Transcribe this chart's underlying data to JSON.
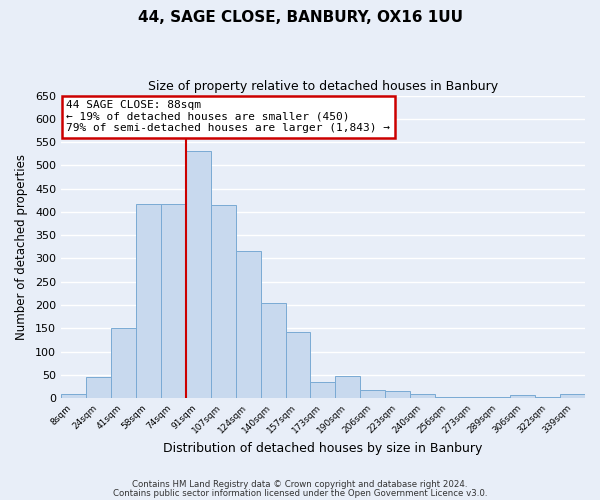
{
  "title": "44, SAGE CLOSE, BANBURY, OX16 1UU",
  "subtitle": "Size of property relative to detached houses in Banbury",
  "xlabel": "Distribution of detached houses by size in Banbury",
  "ylabel": "Number of detached properties",
  "bar_labels": [
    "8sqm",
    "24sqm",
    "41sqm",
    "58sqm",
    "74sqm",
    "91sqm",
    "107sqm",
    "124sqm",
    "140sqm",
    "157sqm",
    "173sqm",
    "190sqm",
    "206sqm",
    "223sqm",
    "240sqm",
    "256sqm",
    "273sqm",
    "289sqm",
    "306sqm",
    "322sqm",
    "339sqm"
  ],
  "bar_heights": [
    8,
    45,
    150,
    418,
    418,
    530,
    415,
    315,
    205,
    142,
    35,
    48,
    17,
    15,
    8,
    3,
    2,
    2,
    7,
    2,
    8
  ],
  "bar_color": "#c8d9ee",
  "bar_edge_color": "#7aaad4",
  "ylim": [
    0,
    650
  ],
  "yticks": [
    0,
    50,
    100,
    150,
    200,
    250,
    300,
    350,
    400,
    450,
    500,
    550,
    600,
    650
  ],
  "vline_color": "#cc0000",
  "annotation_title": "44 SAGE CLOSE: 88sqm",
  "annotation_line1": "← 19% of detached houses are smaller (450)",
  "annotation_line2": "79% of semi-detached houses are larger (1,843) →",
  "annotation_box_color": "#cc0000",
  "footnote1": "Contains HM Land Registry data © Crown copyright and database right 2024.",
  "footnote2": "Contains public sector information licensed under the Open Government Licence v3.0.",
  "background_color": "#e8eef8",
  "grid_color": "#ffffff"
}
